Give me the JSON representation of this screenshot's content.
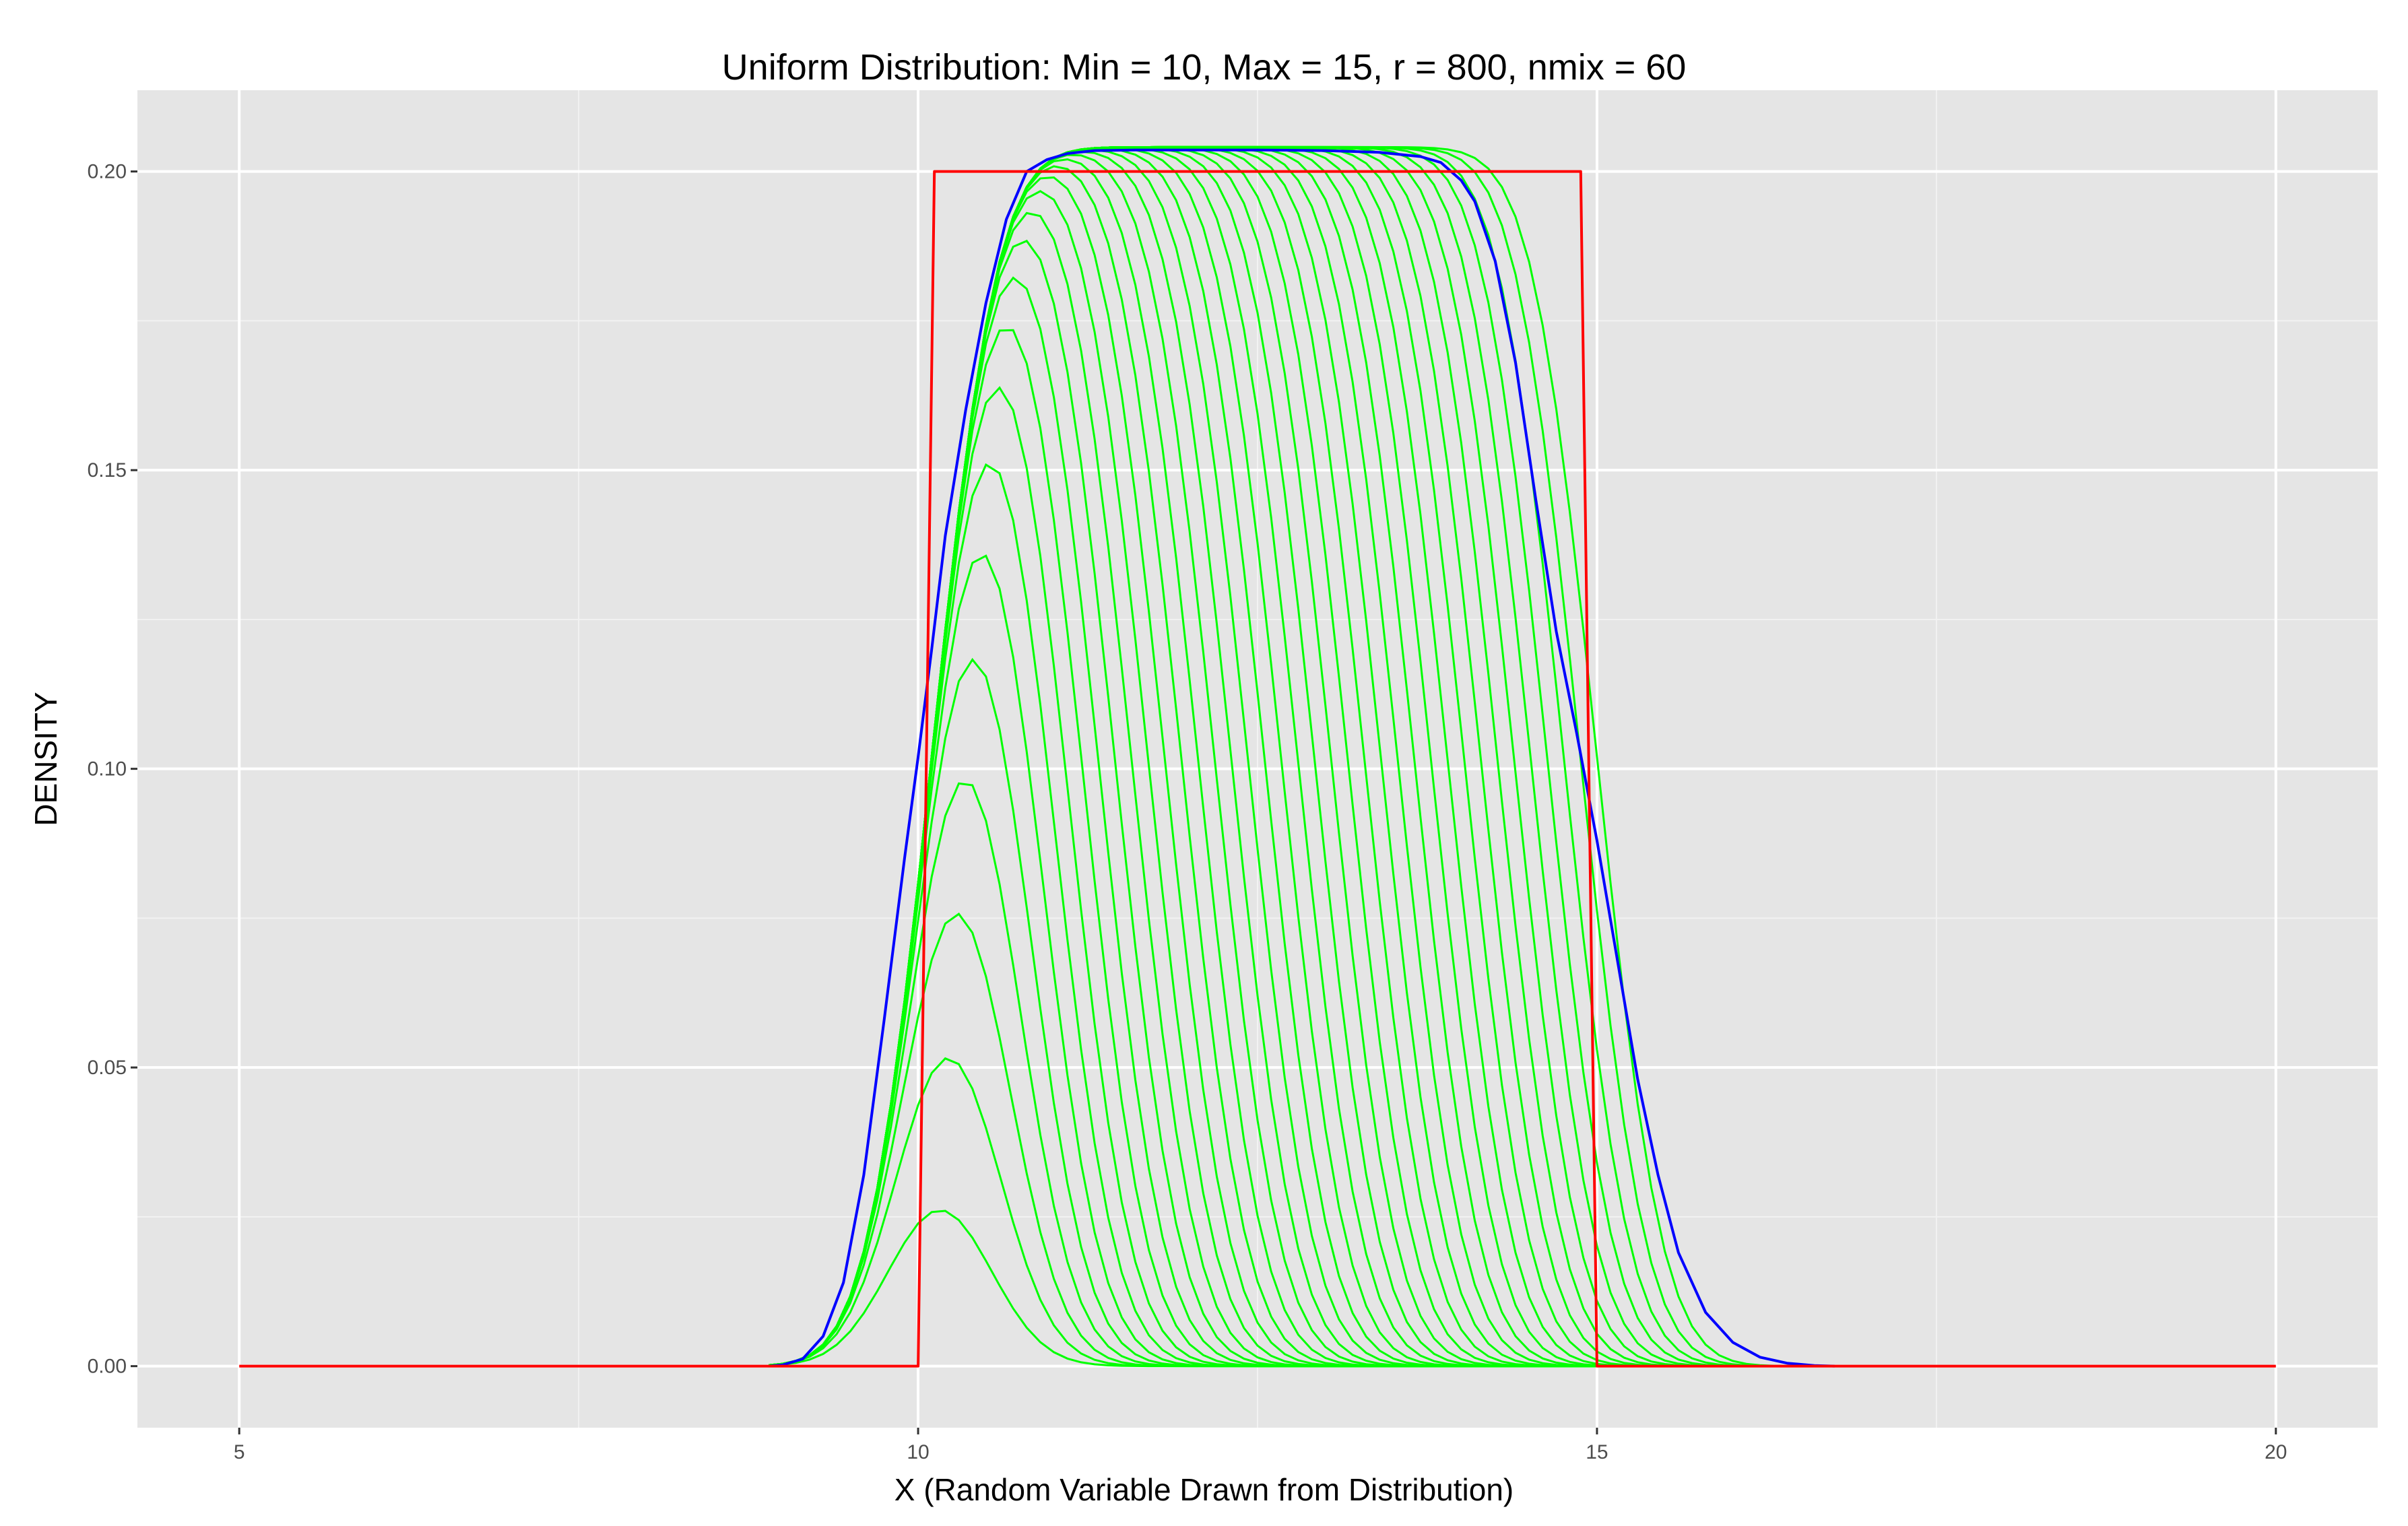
{
  "chart_data": {
    "type": "line",
    "title": "Uniform Distribution: Min = 10, Max = 15, r = 800, nmix = 60",
    "xlabel": "X (Random Variable Drawn from Distribution)",
    "ylabel": "DENSITY",
    "xlim": [
      4.25,
      20.75
    ],
    "ylim": [
      -0.0103,
      0.2136
    ],
    "x_ticks": [
      5,
      10,
      15,
      20
    ],
    "x_tick_labels": [
      "5",
      "10",
      "15",
      "20"
    ],
    "x_minor_ticks": [
      7.5,
      12.5,
      17.5
    ],
    "y_ticks": [
      0,
      0.05,
      0.1,
      0.15,
      0.2
    ],
    "y_tick_labels": [
      "0.00",
      "0.05",
      "0.10",
      "0.15",
      "0.20"
    ],
    "y_minor_ticks": [
      0.025,
      0.075,
      0.125,
      0.175
    ],
    "grid": true,
    "legend": "none",
    "colors": {
      "panel_background": "#e5e5e5",
      "grid_major": "#ffffff",
      "grid_minor": "#f2f2f2",
      "components": "#00ff00",
      "mixture": "#0000ff",
      "true_density": "#ff0000"
    },
    "series": [
      {
        "color": "#ff0000",
        "x": [
          5.0,
          10.0,
          10.12,
          14.88,
          15.0,
          20.0
        ],
        "y": [
          0.0,
          0.0,
          0.2,
          0.2,
          0.0,
          0.0
        ]
      },
      {
        "color": "#0000ff",
        "x": [
          8.9,
          9.0,
          9.15,
          9.3,
          9.45,
          9.6,
          9.75,
          9.9,
          10.0,
          10.1,
          10.2,
          10.35,
          10.5,
          10.65,
          10.8,
          10.95,
          11.1,
          11.3,
          11.6,
          12.0,
          12.5,
          13.0,
          13.4,
          13.7,
          13.85,
          14.0,
          14.1,
          14.25,
          14.4,
          14.55,
          14.7,
          14.85,
          15.0,
          15.15,
          15.3,
          15.45,
          15.6,
          15.8,
          16.0,
          16.2,
          16.4,
          16.6,
          16.75
        ],
        "y": [
          0.0,
          0.0002,
          0.0012,
          0.005,
          0.014,
          0.032,
          0.058,
          0.085,
          0.102,
          0.12,
          0.139,
          0.16,
          0.178,
          0.192,
          0.2,
          0.202,
          0.203,
          0.2035,
          0.2036,
          0.2036,
          0.2036,
          0.2035,
          0.2032,
          0.2025,
          0.2015,
          0.1985,
          0.195,
          0.185,
          0.168,
          0.145,
          0.123,
          0.106,
          0.088,
          0.068,
          0.048,
          0.032,
          0.019,
          0.009,
          0.004,
          0.0015,
          0.0005,
          0.0001,
          0.0
        ]
      }
    ]
  }
}
